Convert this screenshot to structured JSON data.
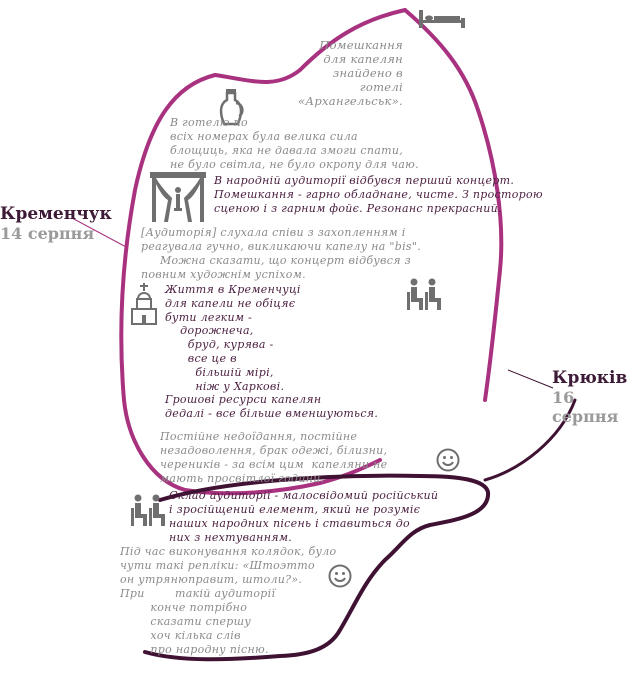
{
  "colors": {
    "magenta_outline": "#a8327f",
    "dark_outline": "#3f1132",
    "gray_text": "#8a8a8a",
    "purple_text": "#4a1e3f",
    "icon_gray": "#6f6f6f"
  },
  "cities": {
    "kremenchuk": {
      "name": "Кременчук",
      "date": "14 серпня"
    },
    "kriukiv": {
      "name": "Крюків",
      "date": "16 серпня"
    }
  },
  "notes": {
    "hotel": "Помешкання\nдля капелян\n      знайдено в\n  готелі\n«Архангельськ».",
    "rooms": "В готелю по\nвсіх номерах була велика сила\nблощиць, яка не давала змоги спати,\nне було світла, не було окропу для чаю.",
    "concert": "В народній аудиторії відбувся перший концерт.\nПомешкання - гарно обладнане, чисте. З просторою\nсценою і з гарним фойє. Резонанс прекрасний.",
    "audience": "[Аудиторія] слухала співи з захопленням і\nреагувала гучно, викликаючи капелу на \"bis\".\n     Можна сказати, що концерт відбувся з\nповним художнім успіхом.",
    "life": "Життя в Кременчуці\nдля капели не обіцяє\nбути легким -\n    дорожнеча,\n      бруд, курява -\n      все це в\n        більшій мірі,\n        ніж у Харкові.\nГрошові ресурси капелян\nдедалі - все більше вменшуються.",
    "hunger": "Постійне недоїдання, постійне\nнезадоволення, брак одежі, білизни,\nчереників - за всім цим  капеляни не\nмають просвітлої години.",
    "composition": "Склад аудиторії - малосвідомий російський\nі зросійщений елемент, який не розуміє\nнаших народних пісень і ставиться до\nних з нехтуванням.",
    "carols": "Під час виконування колядок, було\nчути такі репліки: «Штоэтто\nон утрянюправит, штоли?».",
    "advice": "При        такій аудиторії\n        конче потрібно\n        сказати спершу\n        хоч кілька слів\n        про народну пісню."
  },
  "icons": {
    "bed": "bed-icon",
    "jug": "jug-icon",
    "stage": "stage-curtain-icon",
    "audience1": "seated-audience-icon",
    "church": "church-icon",
    "smile1": "smiley-icon",
    "audience2": "seated-audience-icon",
    "smile2": "smiley-icon"
  }
}
